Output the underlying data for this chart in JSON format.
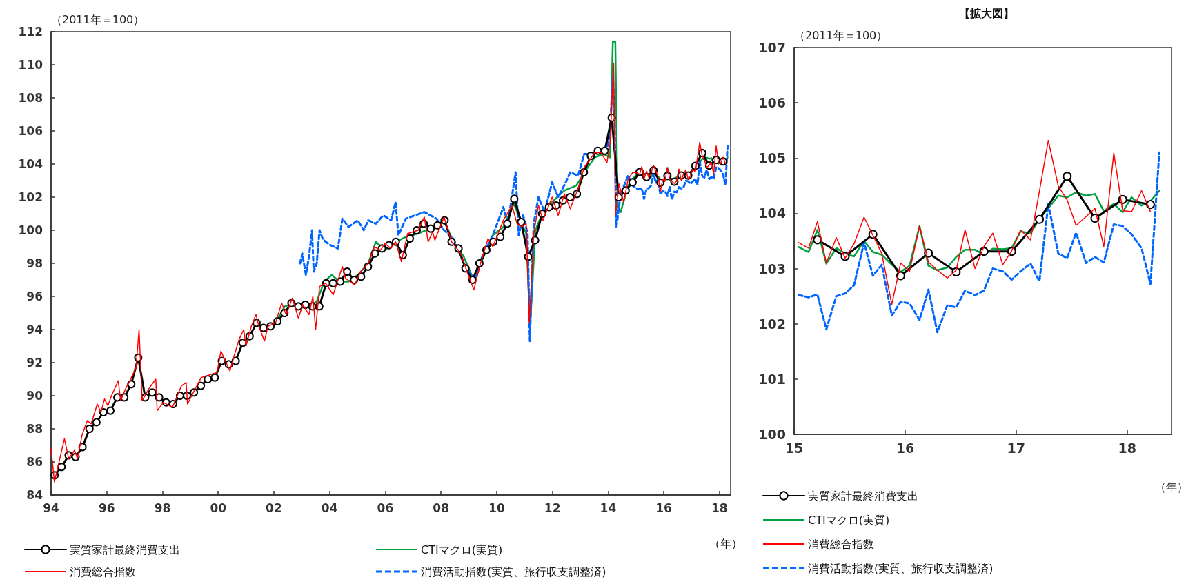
{
  "chart_data": [
    {
      "type": "line",
      "ylabel": "（2011年＝100）",
      "xlabel": "（年）",
      "legend": "bottom",
      "xlim": [
        1994,
        2018.4
      ],
      "xticks": [
        {
          "value": 1994,
          "label": "94"
        },
        {
          "value": 1996,
          "label": "96"
        },
        {
          "value": 1998,
          "label": "98"
        },
        {
          "value": 2000,
          "label": "00"
        },
        {
          "value": 2002,
          "label": "02"
        },
        {
          "value": 2004,
          "label": "04"
        },
        {
          "value": 2006,
          "label": "06"
        },
        {
          "value": 2008,
          "label": "08"
        },
        {
          "value": 2010,
          "label": "10"
        },
        {
          "value": 2012,
          "label": "12"
        },
        {
          "value": 2014,
          "label": "14"
        },
        {
          "value": 2016,
          "label": "16"
        },
        {
          "value": 2018,
          "label": "18"
        }
      ],
      "ylim": [
        84,
        112
      ],
      "yticks": [
        84,
        86,
        88,
        90,
        92,
        94,
        96,
        98,
        100,
        102,
        104,
        106,
        108,
        110,
        112
      ],
      "series": [
        {
          "name": "実質家計最終消費支出",
          "color": "#000000",
          "marker": "circle",
          "line_style": "solid",
          "x": [
            1994.13,
            1994.38,
            1994.63,
            1994.88,
            1995.13,
            1995.38,
            1995.63,
            1995.88,
            1996.13,
            1996.38,
            1996.63,
            1996.88,
            1997.13,
            1997.38,
            1997.63,
            1997.88,
            1998.13,
            1998.38,
            1998.63,
            1998.88,
            1999.13,
            1999.38,
            1999.63,
            1999.88,
            2000.13,
            2000.38,
            2000.63,
            2000.88,
            2001.13,
            2001.38,
            2001.63,
            2001.88,
            2002.13,
            2002.38,
            2002.63,
            2002.88,
            2003.13,
            2003.38,
            2003.63,
            2003.88,
            2004.13,
            2004.38,
            2004.63,
            2004.88,
            2005.13,
            2005.38,
            2005.63,
            2005.88,
            2006.13,
            2006.38,
            2006.63,
            2006.88,
            2007.13,
            2007.38,
            2007.63,
            2007.88,
            2008.13,
            2008.38,
            2008.63,
            2008.88,
            2009.13,
            2009.38,
            2009.63,
            2009.88,
            2010.13,
            2010.38,
            2010.63,
            2010.88,
            2011.13,
            2011.38,
            2011.63,
            2011.88,
            2012.13,
            2012.38,
            2012.63,
            2012.88,
            2013.13,
            2013.38,
            2013.63,
            2013.88,
            2014.13,
            2014.38,
            2014.63,
            2014.88,
            2015.13,
            2015.38,
            2015.63,
            2015.88,
            2016.13,
            2016.38,
            2016.63,
            2016.88,
            2017.13,
            2017.38,
            2017.63,
            2017.88,
            2018.13
          ],
          "values": [
            85.2,
            85.7,
            86.4,
            86.3,
            86.9,
            88.0,
            88.4,
            89.0,
            89.1,
            89.9,
            89.9,
            90.7,
            92.3,
            89.9,
            90.2,
            89.9,
            89.6,
            89.5,
            90.0,
            90.0,
            90.2,
            90.6,
            91.0,
            91.1,
            92.1,
            91.9,
            92.1,
            93.2,
            93.6,
            94.4,
            94.1,
            94.2,
            94.5,
            95.0,
            95.6,
            95.4,
            95.5,
            95.4,
            95.4,
            96.8,
            96.8,
            96.9,
            97.5,
            97.0,
            97.2,
            97.8,
            98.6,
            98.9,
            99.1,
            99.3,
            98.5,
            99.5,
            100.0,
            100.4,
            100.1,
            100.3,
            100.6,
            99.3,
            98.9,
            97.7,
            97.0,
            98.0,
            98.8,
            99.3,
            99.6,
            100.4,
            101.9,
            100.5,
            98.4,
            99.4,
            101.0,
            101.4,
            101.5,
            101.8,
            102.0,
            102.2,
            103.5,
            104.5,
            104.8,
            104.8,
            106.8,
            102.0,
            102.4,
            102.9,
            103.52,
            103.22,
            103.62,
            102.87,
            103.28,
            102.94,
            103.31,
            103.31,
            103.89,
            104.67,
            103.91,
            104.25,
            104.16
          ]
        },
        {
          "name": "CTIマクロ(実質)",
          "color": "#00a040",
          "marker": "none",
          "line_style": "solid",
          "x": [
            2002.06,
            2002.39,
            2002.61,
            2002.93,
            2003.26,
            2003.54,
            2003.81,
            2004.08,
            2004.35,
            2004.68,
            2005.01,
            2005.39,
            2005.66,
            2005.99,
            2006.37,
            2006.74,
            2007.18,
            2007.73,
            2008.11,
            2008.44,
            2008.82,
            2009.2,
            2009.48,
            2009.86,
            2010.24,
            2010.62,
            2010.9,
            2011.06,
            2011.2,
            2011.39,
            2011.66,
            2012.04,
            2012.43,
            2012.86,
            2013.19,
            2013.52,
            2013.85,
            2014.07,
            2014.17,
            2014.26,
            2014.34,
            2014.45,
            2014.72,
            2014.89,
            2015.04,
            2015.13,
            2015.21,
            2015.29,
            2015.38,
            2015.46,
            2015.54,
            2015.63,
            2015.71,
            2015.79,
            2015.88,
            2015.96,
            2016.04,
            2016.13,
            2016.21,
            2016.29,
            2016.38,
            2016.46,
            2016.54,
            2016.63,
            2016.71,
            2016.79,
            2016.88,
            2016.96,
            2017.04,
            2017.13,
            2017.21,
            2017.29,
            2017.38,
            2017.46,
            2017.54,
            2017.63,
            2017.71,
            2017.79,
            2017.88,
            2017.96,
            2018.04,
            2018.13,
            2018.21,
            2018.29
          ],
          "values": [
            94.4,
            95.4,
            95.5,
            95.3,
            95.4,
            95.7,
            96.9,
            97.3,
            96.9,
            96.9,
            97.3,
            98.0,
            99.3,
            98.8,
            99.3,
            99.6,
            99.8,
            100.2,
            100.6,
            99.3,
            98.4,
            96.9,
            98.2,
            99.7,
            100.2,
            101.6,
            100.4,
            99.8,
            94.2,
            100.0,
            101.1,
            101.8,
            102.4,
            102.7,
            103.6,
            104.4,
            104.6,
            104.4,
            111.4,
            111.4,
            101.5,
            101.1,
            102.7,
            103.1,
            103.39,
            103.3,
            103.7,
            103.09,
            103.37,
            103.27,
            103.22,
            103.5,
            103.3,
            103.25,
            103.07,
            102.94,
            103.05,
            103.77,
            103.05,
            102.97,
            103.02,
            103.21,
            103.34,
            103.34,
            103.25,
            103.36,
            103.35,
            103.37,
            103.67,
            103.64,
            103.9,
            104.09,
            104.32,
            104.29,
            104.38,
            104.32,
            104.35,
            104.04,
            104.17,
            104.02,
            104.29,
            104.14,
            104.22,
            104.41
          ]
        },
        {
          "name": "消費総合指数",
          "color": "#ff0000",
          "marker": "none",
          "line_style": "solid",
          "x": [
            1994.0,
            1994.12,
            1994.48,
            1994.63,
            1994.84,
            1994.95,
            1995.11,
            1995.3,
            1995.44,
            1995.66,
            1995.79,
            1995.92,
            1996.04,
            1996.17,
            1996.41,
            1996.5,
            1996.67,
            1996.83,
            1997.05,
            1997.16,
            1997.27,
            1997.54,
            1997.76,
            1997.81,
            1998.03,
            1998.36,
            1998.68,
            1998.85,
            1998.9,
            1999.17,
            1999.39,
            1999.77,
            1999.96,
            2000.1,
            2000.42,
            2000.59,
            2000.75,
            2000.92,
            2001.0,
            2001.19,
            2001.36,
            2001.46,
            2001.66,
            2001.79,
            2002.06,
            2002.28,
            2002.44,
            2002.66,
            2002.88,
            2003.04,
            2003.26,
            2003.4,
            2003.5,
            2003.64,
            2003.86,
            2004.13,
            2004.46,
            2004.57,
            2004.9,
            2005.12,
            2005.39,
            2005.61,
            2005.83,
            2005.99,
            2006.2,
            2006.37,
            2006.58,
            2006.8,
            2007.18,
            2007.4,
            2007.54,
            2007.7,
            2007.78,
            2008.11,
            2008.38,
            2008.71,
            2008.98,
            2009.18,
            2009.42,
            2009.69,
            2009.86,
            2010.24,
            2010.55,
            2010.73,
            2010.9,
            2011.06,
            2011.17,
            2011.33,
            2011.5,
            2011.66,
            2011.99,
            2012.21,
            2012.43,
            2012.64,
            2012.92,
            2013.14,
            2013.36,
            2013.52,
            2013.74,
            2013.96,
            2014.07,
            2014.2,
            2014.26,
            2014.39,
            2014.56,
            2014.72,
            2014.89,
            2015.04,
            2015.13,
            2015.21,
            2015.29,
            2015.38,
            2015.46,
            2015.54,
            2015.63,
            2015.71,
            2015.79,
            2015.88,
            2015.96,
            2016.04,
            2016.13,
            2016.21,
            2016.29,
            2016.38,
            2016.46,
            2016.54,
            2016.63,
            2016.71,
            2016.79,
            2016.88,
            2016.96,
            2017.04,
            2017.13,
            2017.21,
            2017.29,
            2017.38,
            2017.46,
            2017.54,
            2017.63,
            2017.71,
            2017.79,
            2017.88,
            2017.96,
            2018.04,
            2018.13,
            2018.21
          ],
          "values": [
            86.8,
            84.8,
            87.4,
            86.2,
            86.7,
            86.2,
            87.6,
            88.5,
            88.3,
            89.5,
            89.0,
            89.8,
            89.4,
            90.0,
            90.9,
            89.7,
            90.4,
            90.9,
            91.7,
            94.0,
            89.7,
            90.5,
            91.0,
            89.1,
            89.6,
            89.3,
            90.6,
            90.8,
            89.5,
            90.4,
            91.1,
            91.3,
            91.4,
            92.7,
            91.5,
            92.5,
            93.4,
            94.0,
            93.0,
            94.2,
            94.9,
            94.2,
            93.3,
            94.2,
            94.4,
            95.6,
            94.9,
            95.9,
            94.7,
            95.5,
            94.9,
            96.0,
            94.0,
            96.6,
            96.8,
            96.1,
            97.8,
            97.1,
            96.7,
            97.5,
            98.0,
            99.0,
            98.8,
            99.2,
            98.9,
            99.3,
            98.1,
            99.8,
            100.0,
            100.8,
            99.3,
            99.9,
            99.4,
            100.8,
            99.3,
            98.6,
            97.3,
            96.4,
            98.0,
            99.5,
            99.0,
            100.6,
            101.5,
            100.4,
            100.2,
            100.4,
            94.4,
            99.8,
            101.5,
            100.6,
            102.0,
            100.9,
            102.2,
            101.3,
            102.5,
            103.8,
            104.3,
            104.7,
            104.7,
            104.1,
            105.3,
            110.1,
            100.9,
            102.8,
            101.7,
            103.1,
            103.5,
            103.47,
            103.37,
            103.85,
            103.1,
            103.56,
            103.19,
            103.45,
            103.93,
            103.6,
            103.27,
            102.35,
            103.1,
            102.95,
            103.77,
            103.12,
            102.97,
            102.83,
            102.97,
            103.7,
            103.0,
            103.4,
            103.64,
            103.07,
            103.32,
            103.7,
            103.52,
            104.4,
            105.32,
            104.49,
            104.24,
            103.78,
            103.94,
            104.09,
            103.4,
            105.09,
            104.05,
            104.03,
            104.41,
            104.03
          ]
        },
        {
          "name": "消費活動指数(実質、旅行収支調整済)",
          "color": "#0066ff",
          "marker": "none",
          "line_style": "dashed",
          "x": [
            2002.94,
            2003.02,
            2003.15,
            2003.26,
            2003.37,
            2003.43,
            2003.54,
            2003.64,
            2003.75,
            2003.86,
            2004.03,
            2004.3,
            2004.46,
            2004.68,
            2005.01,
            2005.23,
            2005.39,
            2005.66,
            2005.93,
            2006.21,
            2006.37,
            2006.47,
            2006.74,
            2007.07,
            2007.4,
            2007.62,
            2007.84,
            2008.11,
            2008.44,
            2008.82,
            2009.2,
            2009.48,
            2009.86,
            2010.24,
            2010.4,
            2010.68,
            2010.79,
            2010.95,
            2011.11,
            2011.19,
            2011.33,
            2011.5,
            2011.72,
            2011.99,
            2012.21,
            2012.48,
            2012.64,
            2012.92,
            2013.14,
            2013.52,
            2013.96,
            2014.07,
            2014.17,
            2014.23,
            2014.3,
            2014.45,
            2014.72,
            2014.89,
            2015.04,
            2015.13,
            2015.21,
            2015.29,
            2015.38,
            2015.46,
            2015.54,
            2015.63,
            2015.71,
            2015.79,
            2015.88,
            2015.96,
            2016.04,
            2016.13,
            2016.21,
            2016.29,
            2016.38,
            2016.46,
            2016.54,
            2016.63,
            2016.71,
            2016.79,
            2016.88,
            2016.96,
            2017.04,
            2017.13,
            2017.21,
            2017.29,
            2017.38,
            2017.46,
            2017.54,
            2017.63,
            2017.71,
            2017.79,
            2017.88,
            2017.96,
            2018.04,
            2018.13,
            2018.21,
            2018.29
          ],
          "values": [
            98.0,
            98.6,
            97.3,
            98.4,
            100.0,
            97.5,
            98.0,
            100.0,
            99.5,
            99.3,
            99.1,
            98.9,
            100.7,
            100.2,
            100.6,
            100.0,
            100.6,
            100.4,
            100.9,
            100.6,
            101.7,
            99.7,
            100.7,
            100.9,
            101.1,
            100.9,
            100.7,
            100.0,
            99.5,
            98.0,
            97.0,
            98.4,
            99.7,
            101.4,
            100.4,
            103.5,
            99.7,
            100.9,
            99.8,
            93.3,
            100.4,
            102.0,
            101.1,
            102.9,
            102.0,
            102.9,
            103.5,
            103.3,
            104.6,
            104.6,
            104.9,
            106.0,
            109.3,
            106.9,
            100.2,
            102.2,
            103.3,
            102.7,
            102.52,
            102.48,
            102.53,
            101.9,
            102.5,
            102.55,
            102.7,
            103.47,
            102.87,
            103.07,
            102.15,
            102.4,
            102.37,
            102.07,
            102.62,
            101.85,
            102.33,
            102.3,
            102.6,
            102.52,
            102.6,
            103.0,
            102.95,
            102.8,
            102.95,
            103.09,
            102.77,
            104.17,
            103.27,
            103.19,
            103.65,
            103.1,
            103.21,
            103.11,
            103.8,
            103.77,
            103.62,
            103.37,
            102.72,
            105.1
          ]
        }
      ]
    },
    {
      "type": "line",
      "title": "【拡大図】",
      "ylabel": "（2011年＝100）",
      "xlabel": "（年）",
      "legend": "bottom",
      "xlim": [
        2015,
        2018.4
      ],
      "xticks": [
        {
          "value": 2015,
          "label": "15"
        },
        {
          "value": 2016,
          "label": "16"
        },
        {
          "value": 2017,
          "label": "17"
        },
        {
          "value": 2018,
          "label": "18"
        }
      ],
      "ylim": [
        100,
        107
      ],
      "yticks": [
        100,
        101,
        102,
        103,
        104,
        105,
        106,
        107
      ],
      "series": [
        {
          "name": "実質家計最終消費支出",
          "color": "#000000",
          "marker": "circle",
          "line_style": "solid",
          "x": [
            2015.21,
            2015.46,
            2015.71,
            2015.96,
            2016.21,
            2016.46,
            2016.71,
            2016.96,
            2017.21,
            2017.46,
            2017.71,
            2017.96,
            2018.21
          ],
          "values": [
            103.52,
            103.22,
            103.62,
            102.87,
            103.28,
            102.94,
            103.31,
            103.31,
            103.89,
            104.67,
            103.91,
            104.25,
            104.16
          ]
        },
        {
          "name": "CTIマクロ(実質)",
          "color": "#00a040",
          "marker": "none",
          "line_style": "solid",
          "x": [
            2015.04,
            2015.13,
            2015.21,
            2015.29,
            2015.38,
            2015.46,
            2015.54,
            2015.63,
            2015.71,
            2015.79,
            2015.88,
            2015.96,
            2016.04,
            2016.13,
            2016.21,
            2016.29,
            2016.38,
            2016.46,
            2016.54,
            2016.63,
            2016.71,
            2016.79,
            2016.88,
            2016.96,
            2017.04,
            2017.13,
            2017.21,
            2017.29,
            2017.38,
            2017.46,
            2017.54,
            2017.63,
            2017.71,
            2017.79,
            2017.88,
            2017.96,
            2018.04,
            2018.13,
            2018.21,
            2018.29
          ],
          "values": [
            103.39,
            103.3,
            103.7,
            103.09,
            103.37,
            103.27,
            103.22,
            103.5,
            103.3,
            103.25,
            103.07,
            102.94,
            103.05,
            103.77,
            103.05,
            102.97,
            103.02,
            103.21,
            103.34,
            103.34,
            103.25,
            103.36,
            103.35,
            103.37,
            103.67,
            103.64,
            103.9,
            104.09,
            104.32,
            104.29,
            104.38,
            104.32,
            104.35,
            104.04,
            104.17,
            104.02,
            104.29,
            104.14,
            104.22,
            104.41
          ]
        },
        {
          "name": "消費総合指数",
          "color": "#ff0000",
          "marker": "none",
          "line_style": "solid",
          "x": [
            2015.04,
            2015.13,
            2015.21,
            2015.29,
            2015.38,
            2015.46,
            2015.54,
            2015.63,
            2015.71,
            2015.79,
            2015.88,
            2015.96,
            2016.04,
            2016.13,
            2016.21,
            2016.29,
            2016.38,
            2016.46,
            2016.54,
            2016.63,
            2016.71,
            2016.79,
            2016.88,
            2016.96,
            2017.04,
            2017.13,
            2017.21,
            2017.29,
            2017.38,
            2017.46,
            2017.54,
            2017.63,
            2017.71,
            2017.79,
            2017.88,
            2017.96,
            2018.04,
            2018.13,
            2018.21
          ],
          "values": [
            103.47,
            103.37,
            103.85,
            103.1,
            103.56,
            103.19,
            103.45,
            103.93,
            103.6,
            103.27,
            102.35,
            103.1,
            102.95,
            103.77,
            103.12,
            102.97,
            102.83,
            102.97,
            103.7,
            103.0,
            103.4,
            103.64,
            103.07,
            103.32,
            103.7,
            103.52,
            104.4,
            105.32,
            104.49,
            104.24,
            103.78,
            103.94,
            104.09,
            103.4,
            105.09,
            104.05,
            104.03,
            104.41,
            104.03
          ]
        },
        {
          "name": "消費活動指数(実質、旅行収支調整済)",
          "color": "#0066ff",
          "marker": "none",
          "line_style": "dashed",
          "x": [
            2015.04,
            2015.13,
            2015.21,
            2015.29,
            2015.38,
            2015.46,
            2015.54,
            2015.63,
            2015.71,
            2015.79,
            2015.88,
            2015.96,
            2016.04,
            2016.13,
            2016.21,
            2016.29,
            2016.38,
            2016.46,
            2016.54,
            2016.63,
            2016.71,
            2016.79,
            2016.88,
            2016.96,
            2017.04,
            2017.13,
            2017.21,
            2017.29,
            2017.38,
            2017.46,
            2017.54,
            2017.63,
            2017.71,
            2017.79,
            2017.88,
            2017.96,
            2018.04,
            2018.13,
            2018.21,
            2018.29
          ],
          "values": [
            102.52,
            102.48,
            102.53,
            101.9,
            102.5,
            102.55,
            102.7,
            103.47,
            102.87,
            103.07,
            102.15,
            102.4,
            102.37,
            102.07,
            102.62,
            101.85,
            102.33,
            102.3,
            102.6,
            102.52,
            102.6,
            103.0,
            102.95,
            102.8,
            102.95,
            103.09,
            102.77,
            104.17,
            103.27,
            103.19,
            103.65,
            103.1,
            103.21,
            103.11,
            103.8,
            103.77,
            103.62,
            103.37,
            102.72,
            105.1
          ]
        }
      ]
    }
  ]
}
